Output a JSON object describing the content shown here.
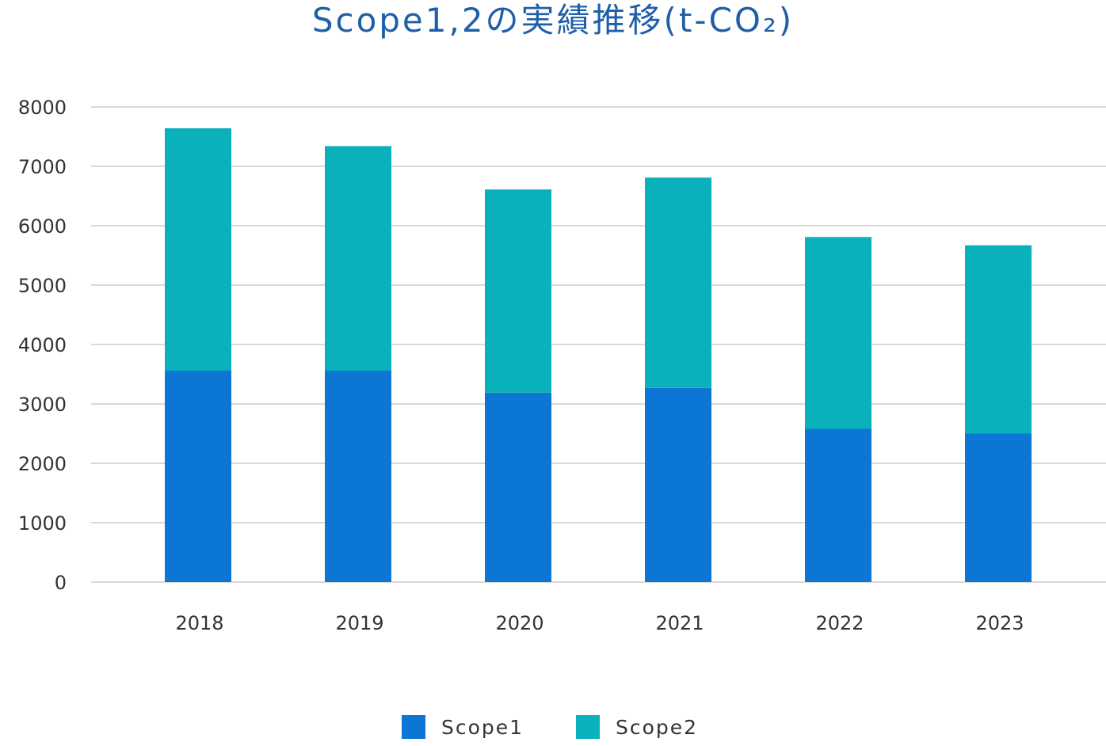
{
  "chart_data": {
    "type": "bar",
    "stacked": true,
    "title": "Scope1,2の実績推移(t-CO₂)",
    "categories": [
      "2018",
      "2019",
      "2020",
      "2021",
      "2022",
      "2023"
    ],
    "series": [
      {
        "name": "Scope1",
        "color": "#0c76d5",
        "values": [
          3560,
          3560,
          3190,
          3270,
          2580,
          2500
        ]
      },
      {
        "name": "Scope2",
        "color": "#0ab1ba",
        "values": [
          4080,
          3780,
          3420,
          3540,
          3230,
          3170
        ]
      }
    ],
    "ylim": [
      0,
      8000
    ],
    "yticks": [
      0,
      1000,
      2000,
      3000,
      4000,
      5000,
      6000,
      7000,
      8000
    ],
    "grid": true,
    "gridColor": "#d9d9d9",
    "legend": "bottom"
  }
}
